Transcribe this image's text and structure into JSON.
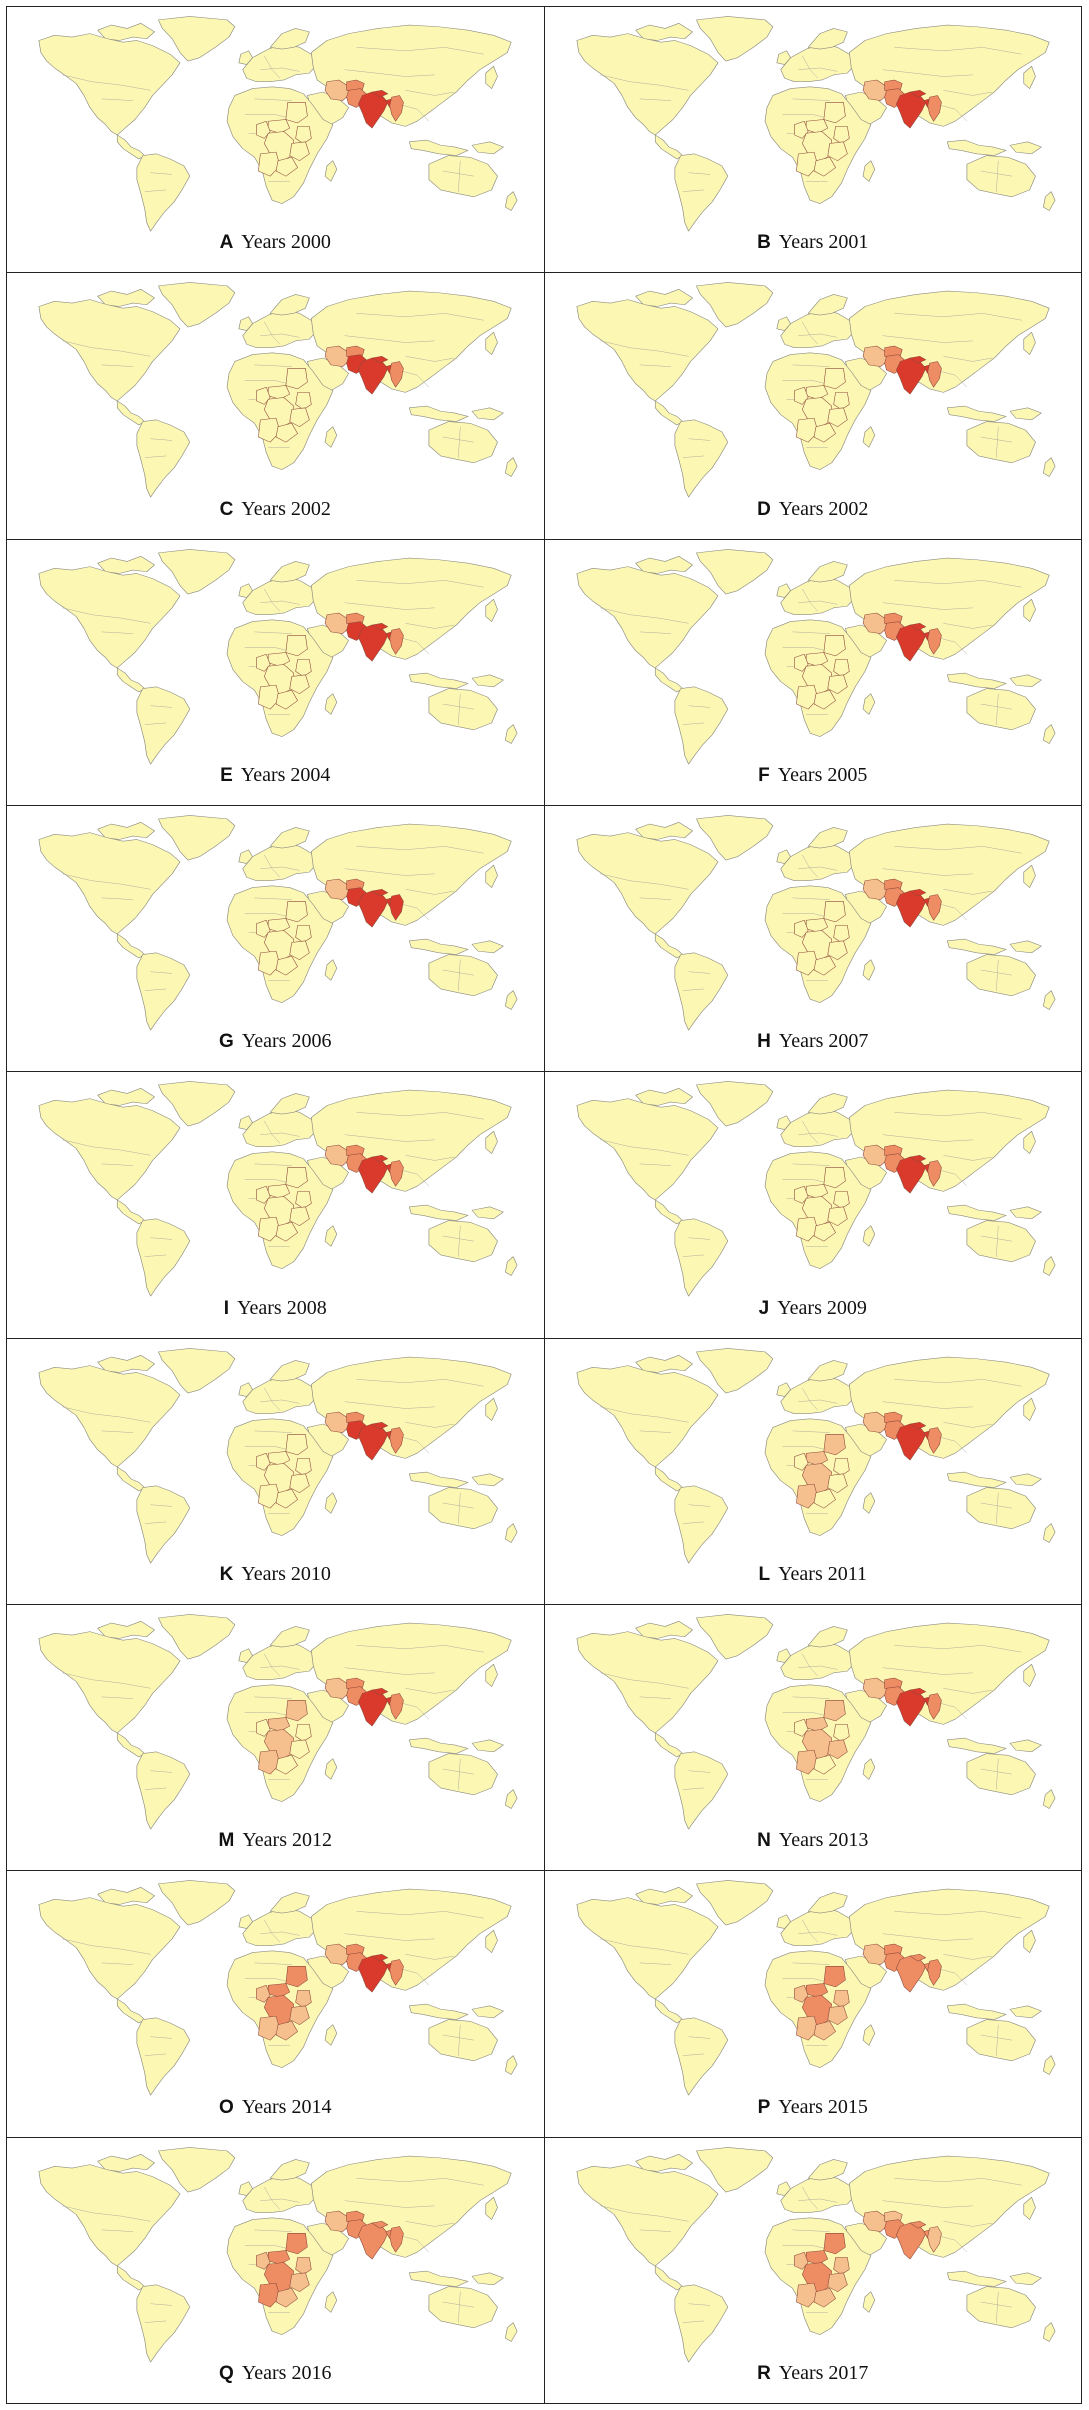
{
  "figure": {
    "type": "choropleth-map-grid",
    "colors": {
      "base": "#fdf7b4",
      "level1": "#f6c08e",
      "level2": "#ee8c63",
      "level3": "#d93a2c"
    },
    "panels": [
      {
        "letter": "A",
        "label": "Years 2000",
        "india": 3,
        "pakistan": 2,
        "afghanistan": 2,
        "myanmar": 2,
        "nepal": 3,
        "bangladesh": 3,
        "iran": 1,
        "drc": 0,
        "angola": 0,
        "zambia": 0,
        "tanzania": 0,
        "sudan": 0,
        "kenya": 0,
        "car": 0,
        "cameroon": 0
      },
      {
        "letter": "B",
        "label": "Years 2001",
        "india": 3,
        "pakistan": 2,
        "afghanistan": 2,
        "myanmar": 2,
        "nepal": 3,
        "bangladesh": 3,
        "iran": 1,
        "drc": 0,
        "angola": 0,
        "zambia": 0,
        "tanzania": 0,
        "sudan": 0,
        "kenya": 0,
        "car": 0,
        "cameroon": 0
      },
      {
        "letter": "C",
        "label": "Years 2002",
        "india": 3,
        "pakistan": 3,
        "afghanistan": 2,
        "myanmar": 2,
        "nepal": 3,
        "bangladesh": 3,
        "iran": 1,
        "drc": 0,
        "angola": 0,
        "zambia": 0,
        "tanzania": 0,
        "sudan": 0,
        "kenya": 0,
        "car": 0,
        "cameroon": 0
      },
      {
        "letter": "D",
        "label": "Years 2002",
        "india": 3,
        "pakistan": 2,
        "afghanistan": 2,
        "myanmar": 2,
        "nepal": 3,
        "bangladesh": 3,
        "iran": 1,
        "drc": 0,
        "angola": 0,
        "zambia": 0,
        "tanzania": 0,
        "sudan": 0,
        "kenya": 0,
        "car": 0,
        "cameroon": 0
      },
      {
        "letter": "E",
        "label": "Years 2004",
        "india": 3,
        "pakistan": 3,
        "afghanistan": 2,
        "myanmar": 2,
        "nepal": 3,
        "bangladesh": 3,
        "iran": 1,
        "drc": 0,
        "angola": 0,
        "zambia": 0,
        "tanzania": 0,
        "sudan": 0,
        "kenya": 0,
        "car": 0,
        "cameroon": 0
      },
      {
        "letter": "F",
        "label": "Years 2005",
        "india": 3,
        "pakistan": 2,
        "afghanistan": 2,
        "myanmar": 2,
        "nepal": 3,
        "bangladesh": 3,
        "iran": 1,
        "drc": 0,
        "angola": 0,
        "zambia": 0,
        "tanzania": 0,
        "sudan": 0,
        "kenya": 0,
        "car": 0,
        "cameroon": 0
      },
      {
        "letter": "G",
        "label": "Years 2006",
        "india": 3,
        "pakistan": 3,
        "afghanistan": 2,
        "myanmar": 3,
        "nepal": 3,
        "bangladesh": 3,
        "iran": 1,
        "drc": 0,
        "angola": 0,
        "zambia": 0,
        "tanzania": 0,
        "sudan": 0,
        "kenya": 0,
        "car": 0,
        "cameroon": 0
      },
      {
        "letter": "H",
        "label": "Years 2007",
        "india": 3,
        "pakistan": 2,
        "afghanistan": 2,
        "myanmar": 2,
        "nepal": 3,
        "bangladesh": 3,
        "iran": 1,
        "drc": 0,
        "angola": 0,
        "zambia": 0,
        "tanzania": 0,
        "sudan": 0,
        "kenya": 0,
        "car": 0,
        "cameroon": 0
      },
      {
        "letter": "I",
        "label": "Years 2008",
        "india": 3,
        "pakistan": 2,
        "afghanistan": 2,
        "myanmar": 2,
        "nepal": 3,
        "bangladesh": 3,
        "iran": 1,
        "drc": 0,
        "angola": 0,
        "zambia": 0,
        "tanzania": 0,
        "sudan": 0,
        "kenya": 0,
        "car": 0,
        "cameroon": 0
      },
      {
        "letter": "J",
        "label": "Years 2009",
        "india": 3,
        "pakistan": 2,
        "afghanistan": 2,
        "myanmar": 2,
        "nepal": 3,
        "bangladesh": 3,
        "iran": 1,
        "drc": 0,
        "angola": 0,
        "zambia": 0,
        "tanzania": 0,
        "sudan": 0,
        "kenya": 0,
        "car": 0,
        "cameroon": 0
      },
      {
        "letter": "K",
        "label": "Years 2010",
        "india": 3,
        "pakistan": 3,
        "afghanistan": 2,
        "myanmar": 2,
        "nepal": 3,
        "bangladesh": 3,
        "iran": 1,
        "drc": 0,
        "angola": 0,
        "zambia": 0,
        "tanzania": 0,
        "sudan": 0,
        "kenya": 0,
        "car": 0,
        "cameroon": 0
      },
      {
        "letter": "L",
        "label": "Years 2011",
        "india": 3,
        "pakistan": 2,
        "afghanistan": 2,
        "myanmar": 2,
        "nepal": 3,
        "bangladesh": 3,
        "iran": 1,
        "drc": 1,
        "angola": 1,
        "zambia": 0,
        "tanzania": 0,
        "sudan": 1,
        "kenya": 0,
        "car": 1,
        "cameroon": 0
      },
      {
        "letter": "M",
        "label": "Years 2012",
        "india": 3,
        "pakistan": 2,
        "afghanistan": 2,
        "myanmar": 2,
        "nepal": 3,
        "bangladesh": 3,
        "iran": 1,
        "drc": 1,
        "angola": 1,
        "zambia": 0,
        "tanzania": 0,
        "sudan": 1,
        "kenya": 0,
        "car": 1,
        "cameroon": 0
      },
      {
        "letter": "N",
        "label": "Years 2013",
        "india": 3,
        "pakistan": 2,
        "afghanistan": 2,
        "myanmar": 2,
        "nepal": 3,
        "bangladesh": 3,
        "iran": 1,
        "drc": 1,
        "angola": 1,
        "zambia": 0,
        "tanzania": 1,
        "sudan": 1,
        "kenya": 0,
        "car": 1,
        "cameroon": 0
      },
      {
        "letter": "O",
        "label": "Years 2014",
        "india": 3,
        "pakistan": 2,
        "afghanistan": 2,
        "myanmar": 2,
        "nepal": 3,
        "bangladesh": 3,
        "iran": 1,
        "drc": 2,
        "angola": 1,
        "zambia": 1,
        "tanzania": 1,
        "sudan": 2,
        "kenya": 1,
        "car": 2,
        "cameroon": 1
      },
      {
        "letter": "P",
        "label": "Years 2015",
        "india": 2,
        "pakistan": 2,
        "afghanistan": 2,
        "myanmar": 2,
        "nepal": 2,
        "bangladesh": 2,
        "iran": 1,
        "drc": 2,
        "angola": 1,
        "zambia": 1,
        "tanzania": 1,
        "sudan": 2,
        "kenya": 1,
        "car": 2,
        "cameroon": 1
      },
      {
        "letter": "Q",
        "label": "Years 2016",
        "india": 2,
        "pakistan": 2,
        "afghanistan": 2,
        "myanmar": 2,
        "nepal": 2,
        "bangladesh": 2,
        "iran": 1,
        "drc": 2,
        "angola": 2,
        "zambia": 1,
        "tanzania": 1,
        "sudan": 2,
        "kenya": 1,
        "car": 2,
        "cameroon": 1
      },
      {
        "letter": "R",
        "label": "Years 2017",
        "india": 2,
        "pakistan": 2,
        "afghanistan": 1,
        "myanmar": 1,
        "nepal": 2,
        "bangladesh": 2,
        "iran": 1,
        "drc": 2,
        "angola": 1,
        "zambia": 1,
        "tanzania": 1,
        "sudan": 2,
        "kenya": 1,
        "car": 2,
        "cameroon": 1
      }
    ]
  }
}
